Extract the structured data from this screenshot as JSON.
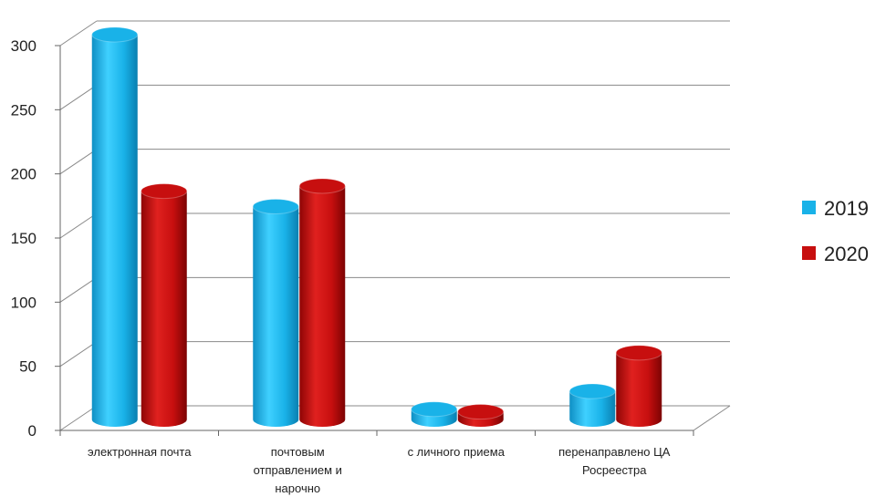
{
  "chart_data": {
    "type": "bar",
    "style": "3d-cylinder",
    "categories": [
      [
        "электронная почта"
      ],
      [
        "почтовым",
        "отправлением и",
        "нарочно"
      ],
      [
        "с личного приема"
      ],
      [
        "перенаправлено ЦА",
        "Росреестра"
      ]
    ],
    "series": [
      {
        "name": "2019",
        "color": "#19b2e8",
        "values": [
          300,
          166,
          8,
          22
        ]
      },
      {
        "name": "2020",
        "color": "#c70f0f",
        "values": [
          178,
          182,
          6,
          52
        ]
      }
    ],
    "yticks": [
      0,
      50,
      100,
      150,
      200,
      250,
      300
    ],
    "ylim": [
      0,
      300
    ],
    "grid": true,
    "legend": "right"
  }
}
